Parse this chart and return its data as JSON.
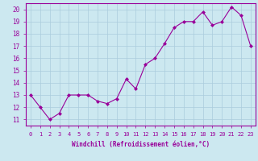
{
  "x": [
    0,
    1,
    2,
    3,
    4,
    5,
    6,
    7,
    8,
    9,
    10,
    11,
    12,
    13,
    14,
    15,
    16,
    17,
    18,
    19,
    20,
    21,
    22,
    23
  ],
  "y": [
    13.0,
    12.0,
    11.0,
    11.5,
    13.0,
    13.0,
    13.0,
    12.5,
    12.3,
    12.7,
    14.3,
    13.5,
    15.5,
    16.0,
    17.2,
    18.5,
    19.0,
    19.0,
    19.8,
    18.7,
    19.0,
    20.2,
    19.5,
    17.0
  ],
  "line_color": "#990099",
  "marker": "D",
  "marker_size": 2,
  "bg_color": "#cce8f0",
  "grid_color": "#aaccdd",
  "xlabel": "Windchill (Refroidissement éolien,°C)",
  "yticks": [
    11,
    12,
    13,
    14,
    15,
    16,
    17,
    18,
    19,
    20
  ],
  "ylim": [
    10.5,
    20.5
  ],
  "xlim": [
    -0.5,
    23.5
  ],
  "spine_color": "#990099",
  "label_color": "#990099",
  "xfontsize": 5.0,
  "yfontsize": 5.5,
  "xlabel_fontsize": 5.5
}
